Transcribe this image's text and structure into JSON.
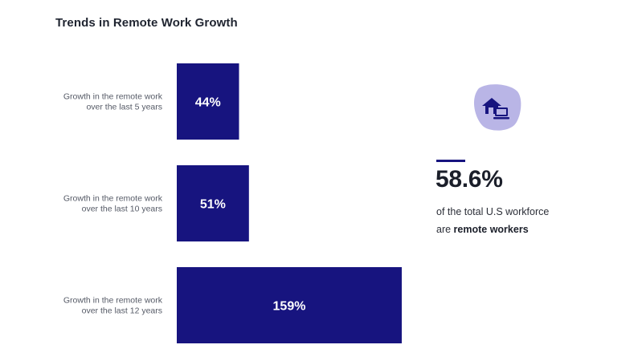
{
  "title": "Trends in Remote Work Growth",
  "colors": {
    "bar": "#17147f",
    "icon_blob": "#b9b5e6",
    "icon": "#17147f"
  },
  "chart_data": {
    "type": "bar",
    "orientation": "horizontal",
    "categories": [
      [
        "Growth in the remote work",
        "over the last 5 years"
      ],
      [
        "Growth in the remote work",
        "over the last 10 years"
      ],
      [
        "Growth in the remote work",
        "over the last 12 years"
      ]
    ],
    "values": [
      44,
      51,
      159
    ],
    "value_labels": [
      "44%",
      "51%",
      "159%"
    ],
    "unit": "%",
    "xlim": [
      0,
      159
    ],
    "grid": false,
    "legend": "none"
  },
  "stat": {
    "icon": "home-office-icon",
    "value": "58.6%",
    "text_before": "of the total U.S workforce are ",
    "text_bold": "remote workers"
  }
}
